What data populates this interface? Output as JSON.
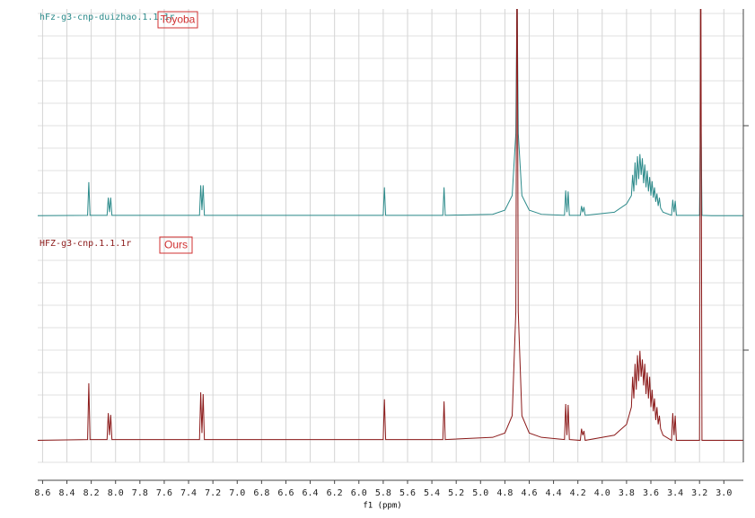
{
  "chart_data": [
    {
      "type": "line",
      "xlim": [
        8.64,
        2.84
      ],
      "ylim": [
        0,
        100
      ],
      "annotation": "Toyoba",
      "x": [
        8.64,
        8.23,
        8.22,
        8.21,
        8.07,
        8.06,
        8.05,
        8.04,
        8.03,
        7.31,
        7.3,
        7.29,
        7.28,
        7.27,
        5.8,
        5.79,
        5.78,
        5.31,
        5.3,
        5.29,
        4.9,
        4.8,
        4.74,
        4.71,
        4.7,
        4.69,
        4.66,
        4.6,
        4.5,
        4.31,
        4.3,
        4.29,
        4.28,
        4.27,
        4.18,
        4.17,
        4.16,
        4.15,
        4.14,
        3.9,
        3.8,
        3.76,
        3.75,
        3.74,
        3.73,
        3.72,
        3.71,
        3.7,
        3.69,
        3.68,
        3.67,
        3.66,
        3.65,
        3.64,
        3.63,
        3.62,
        3.61,
        3.6,
        3.59,
        3.58,
        3.57,
        3.56,
        3.55,
        3.54,
        3.53,
        3.52,
        3.5,
        3.43,
        3.42,
        3.41,
        3.4,
        3.39,
        3.2,
        3.19,
        3.18,
        3.1,
        3.0,
        2.84
      ],
      "series": [
        {
          "name": "hFz-g3-cnp-duizhao.1.1.1r",
          "color": "#2b8a8a",
          "values": [
            0.3,
            0.5,
            16.5,
            0.5,
            0.5,
            9,
            2,
            9,
            0.5,
            0.5,
            15,
            3,
            15,
            0.5,
            0.5,
            14,
            0.5,
            0.5,
            14,
            0.5,
            1,
            3,
            10,
            40,
            110,
            40,
            10,
            3,
            1,
            0.5,
            12.5,
            2,
            12,
            0.5,
            0.5,
            5,
            2,
            4.5,
            0.5,
            2,
            6,
            10,
            20,
            12,
            26,
            15,
            29,
            18,
            30,
            20,
            28,
            16,
            25,
            14,
            22,
            12,
            19,
            10,
            17,
            9,
            14,
            7,
            11,
            5,
            9,
            4,
            2,
            0.5,
            8,
            2,
            7.5,
            0.5,
            0.5,
            60,
            0.5,
            0.3,
            0.3,
            0.3
          ]
        }
      ]
    },
    {
      "type": "line",
      "xlim": [
        8.64,
        2.84
      ],
      "ylim": [
        0,
        100
      ],
      "annotation": "Ours",
      "xlabel": "f1 (ppm)",
      "xticks": [
        8.6,
        8.4,
        8.2,
        {
          "value": 8,
          "label": "8.0"
        },
        7.8,
        7.6,
        7.4,
        7.2,
        {
          "value": 7,
          "label": "7.0"
        },
        6.8,
        6.6,
        6.4,
        6.2,
        {
          "value": 6,
          "label": "6.0"
        },
        5.8,
        5.6,
        5.4,
        5.2,
        {
          "value": 5,
          "label": "5.0"
        },
        4.8,
        4.6,
        4.4,
        4.2,
        {
          "value": 4,
          "label": "4.0"
        },
        3.8,
        3.6,
        3.4,
        3.2,
        {
          "value": 3,
          "label": "3.0"
        }
      ],
      "grid": true,
      "x": [
        8.64,
        8.23,
        8.22,
        8.21,
        8.07,
        8.06,
        8.05,
        8.04,
        8.03,
        7.31,
        7.3,
        7.29,
        7.28,
        7.27,
        5.8,
        5.79,
        5.78,
        5.31,
        5.3,
        5.29,
        4.9,
        4.8,
        4.74,
        4.71,
        4.7,
        4.69,
        4.66,
        4.6,
        4.5,
        4.31,
        4.3,
        4.29,
        4.28,
        4.27,
        4.18,
        4.17,
        4.16,
        4.15,
        4.14,
        3.9,
        3.8,
        3.76,
        3.75,
        3.74,
        3.73,
        3.72,
        3.71,
        3.7,
        3.69,
        3.68,
        3.67,
        3.66,
        3.65,
        3.64,
        3.63,
        3.62,
        3.61,
        3.6,
        3.59,
        3.58,
        3.57,
        3.56,
        3.55,
        3.54,
        3.53,
        3.52,
        3.5,
        3.43,
        3.42,
        3.41,
        3.4,
        3.39,
        3.2,
        3.19,
        3.18,
        3.1,
        3.0,
        2.84
      ],
      "series": [
        {
          "name": "HFZ-g3-cnp.1.1.1r",
          "color": "#8b1a1a",
          "values": [
            0.3,
            0.5,
            13.5,
            0.5,
            0.5,
            6.6,
            1.5,
            6.2,
            0.5,
            0.5,
            11.4,
            2,
            11,
            0.5,
            0.5,
            9.8,
            0.5,
            0.5,
            9.3,
            0.5,
            1,
            2,
            6,
            30,
            120,
            30,
            6,
            2,
            1,
            0.5,
            8.7,
            1.5,
            8.5,
            0.5,
            0.3,
            3,
            1.5,
            2.5,
            0.3,
            1.5,
            4,
            8,
            15,
            10,
            18,
            12,
            20,
            14,
            21,
            15,
            19,
            13,
            18,
            11,
            16,
            10,
            15,
            8,
            12,
            7,
            10,
            5,
            8,
            4,
            6,
            3,
            1.5,
            0.3,
            6.6,
            1.5,
            6,
            0.3,
            0.3,
            120,
            0.3,
            0.3,
            0.3,
            0.3
          ]
        }
      ]
    }
  ]
}
